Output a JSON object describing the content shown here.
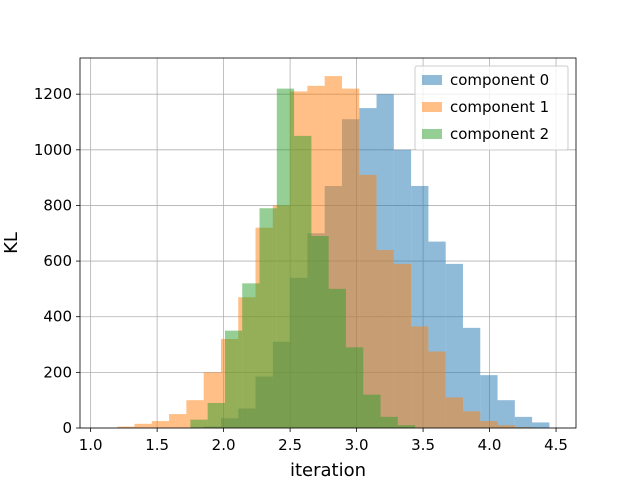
{
  "chart_data": {
    "type": "histogram",
    "title": "",
    "xlabel": "iteration",
    "ylabel": "KL",
    "xlim": [
      0.92,
      4.65
    ],
    "ylim": [
      0,
      1330
    ],
    "xticks": [
      1.0,
      1.5,
      2.0,
      2.5,
      3.0,
      3.5,
      4.0,
      4.5
    ],
    "xtick_labels": [
      "1.0",
      "1.5",
      "2.0",
      "2.5",
      "3.0",
      "3.5",
      "4.0",
      "4.5"
    ],
    "yticks": [
      0,
      200,
      400,
      600,
      800,
      1000,
      1200
    ],
    "ytick_labels": [
      "0",
      "200",
      "400",
      "600",
      "800",
      "1000",
      "1200"
    ],
    "grid": true,
    "legend_position": "top-right",
    "series": [
      {
        "name": "component 0",
        "color": "#1f77b4",
        "alpha": 0.5,
        "bins": [
          [
            1.85,
            1.98,
            5
          ],
          [
            1.98,
            2.11,
            35
          ],
          [
            2.11,
            2.24,
            70
          ],
          [
            2.24,
            2.37,
            185
          ],
          [
            2.37,
            2.5,
            310
          ],
          [
            2.5,
            2.63,
            540
          ],
          [
            2.63,
            2.76,
            700
          ],
          [
            2.76,
            2.89,
            870
          ],
          [
            2.89,
            3.02,
            1110
          ],
          [
            3.02,
            3.15,
            1150
          ],
          [
            3.15,
            3.28,
            1200
          ],
          [
            3.28,
            3.41,
            1000
          ],
          [
            3.41,
            3.54,
            870
          ],
          [
            3.54,
            3.67,
            670
          ],
          [
            3.67,
            3.8,
            590
          ],
          [
            3.8,
            3.93,
            360
          ],
          [
            3.93,
            4.06,
            190
          ],
          [
            4.06,
            4.19,
            100
          ],
          [
            4.19,
            4.32,
            40
          ],
          [
            4.32,
            4.45,
            20
          ]
        ]
      },
      {
        "name": "component 1",
        "color": "#ff7f0e",
        "alpha": 0.5,
        "bins": [
          [
            1.2,
            1.33,
            5
          ],
          [
            1.33,
            1.46,
            15
          ],
          [
            1.46,
            1.59,
            25
          ],
          [
            1.59,
            1.72,
            50
          ],
          [
            1.72,
            1.85,
            100
          ],
          [
            1.85,
            1.98,
            200
          ],
          [
            1.98,
            2.11,
            320
          ],
          [
            2.11,
            2.24,
            470
          ],
          [
            2.24,
            2.37,
            720
          ],
          [
            2.37,
            2.5,
            800
          ],
          [
            2.5,
            2.63,
            1210
          ],
          [
            2.63,
            2.76,
            1230
          ],
          [
            2.76,
            2.89,
            1265
          ],
          [
            2.89,
            3.02,
            1220
          ],
          [
            3.02,
            3.15,
            910
          ],
          [
            3.15,
            3.28,
            640
          ],
          [
            3.28,
            3.41,
            590
          ],
          [
            3.41,
            3.54,
            365
          ],
          [
            3.54,
            3.67,
            275
          ],
          [
            3.67,
            3.8,
            110
          ],
          [
            3.8,
            3.93,
            60
          ],
          [
            3.93,
            4.06,
            25
          ],
          [
            4.06,
            4.19,
            10
          ],
          [
            4.19,
            4.32,
            3
          ]
        ]
      },
      {
        "name": "component 2",
        "color": "#2ca02c",
        "alpha": 0.5,
        "bins": [
          [
            1.75,
            1.88,
            30
          ],
          [
            1.88,
            2.01,
            90
          ],
          [
            2.01,
            2.14,
            350
          ],
          [
            2.14,
            2.27,
            520
          ],
          [
            2.27,
            2.4,
            790
          ],
          [
            2.4,
            2.53,
            1220
          ],
          [
            2.53,
            2.66,
            1050
          ],
          [
            2.66,
            2.79,
            690
          ],
          [
            2.79,
            2.92,
            500
          ],
          [
            2.92,
            3.05,
            290
          ],
          [
            3.05,
            3.18,
            120
          ],
          [
            3.18,
            3.31,
            40
          ],
          [
            3.31,
            3.44,
            10
          ]
        ]
      }
    ]
  }
}
